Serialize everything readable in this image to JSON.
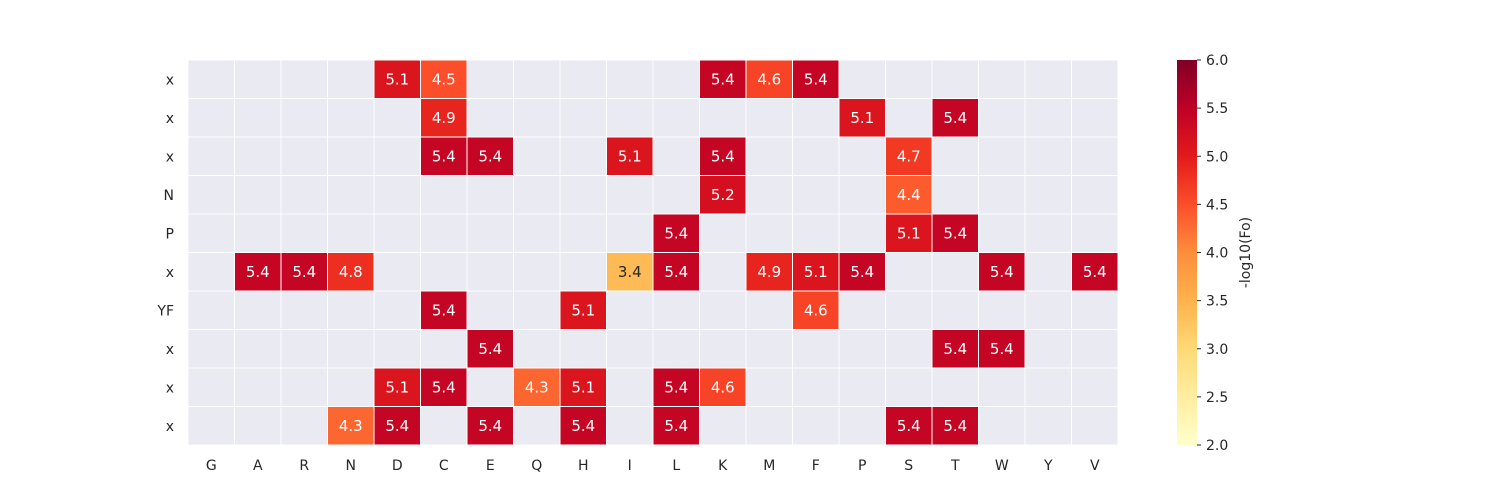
{
  "chart_data": {
    "type": "heatmap",
    "x_categories": [
      "G",
      "A",
      "R",
      "N",
      "D",
      "C",
      "E",
      "Q",
      "H",
      "I",
      "L",
      "K",
      "M",
      "F",
      "P",
      "S",
      "T",
      "W",
      "Y",
      "V"
    ],
    "y_categories": [
      "x",
      "x",
      "x",
      "N",
      "P",
      "x",
      "YF",
      "x",
      "x",
      "x"
    ],
    "cells": [
      {
        "row": 0,
        "col": "D",
        "value": 5.1
      },
      {
        "row": 0,
        "col": "C",
        "value": 4.5
      },
      {
        "row": 0,
        "col": "K",
        "value": 5.4
      },
      {
        "row": 0,
        "col": "M",
        "value": 4.6
      },
      {
        "row": 0,
        "col": "F",
        "value": 5.4
      },
      {
        "row": 1,
        "col": "C",
        "value": 4.9
      },
      {
        "row": 1,
        "col": "P",
        "value": 5.1
      },
      {
        "row": 1,
        "col": "T",
        "value": 5.4
      },
      {
        "row": 2,
        "col": "C",
        "value": 5.4
      },
      {
        "row": 2,
        "col": "E",
        "value": 5.4
      },
      {
        "row": 2,
        "col": "I",
        "value": 5.1
      },
      {
        "row": 2,
        "col": "K",
        "value": 5.4
      },
      {
        "row": 2,
        "col": "S",
        "value": 4.7
      },
      {
        "row": 3,
        "col": "K",
        "value": 5.2
      },
      {
        "row": 3,
        "col": "S",
        "value": 4.4
      },
      {
        "row": 4,
        "col": "L",
        "value": 5.4
      },
      {
        "row": 4,
        "col": "S",
        "value": 5.1
      },
      {
        "row": 4,
        "col": "T",
        "value": 5.4
      },
      {
        "row": 5,
        "col": "A",
        "value": 5.4
      },
      {
        "row": 5,
        "col": "R",
        "value": 5.4
      },
      {
        "row": 5,
        "col": "N",
        "value": 4.8
      },
      {
        "row": 5,
        "col": "I",
        "value": 3.4
      },
      {
        "row": 5,
        "col": "L",
        "value": 5.4
      },
      {
        "row": 5,
        "col": "M",
        "value": 4.9
      },
      {
        "row": 5,
        "col": "F",
        "value": 5.1
      },
      {
        "row": 5,
        "col": "P",
        "value": 5.4
      },
      {
        "row": 5,
        "col": "W",
        "value": 5.4
      },
      {
        "row": 5,
        "col": "V",
        "value": 5.4
      },
      {
        "row": 6,
        "col": "C",
        "value": 5.4
      },
      {
        "row": 6,
        "col": "H",
        "value": 5.1
      },
      {
        "row": 6,
        "col": "F",
        "value": 4.6
      },
      {
        "row": 7,
        "col": "E",
        "value": 5.4
      },
      {
        "row": 7,
        "col": "T",
        "value": 5.4
      },
      {
        "row": 7,
        "col": "W",
        "value": 5.4
      },
      {
        "row": 8,
        "col": "D",
        "value": 5.1
      },
      {
        "row": 8,
        "col": "C",
        "value": 5.4
      },
      {
        "row": 8,
        "col": "Q",
        "value": 4.3
      },
      {
        "row": 8,
        "col": "H",
        "value": 5.1
      },
      {
        "row": 8,
        "col": "L",
        "value": 5.4
      },
      {
        "row": 8,
        "col": "K",
        "value": 4.6
      },
      {
        "row": 9,
        "col": "N",
        "value": 4.3
      },
      {
        "row": 9,
        "col": "D",
        "value": 5.4
      },
      {
        "row": 9,
        "col": "E",
        "value": 5.4
      },
      {
        "row": 9,
        "col": "H",
        "value": 5.4
      },
      {
        "row": 9,
        "col": "L",
        "value": 5.4
      },
      {
        "row": 9,
        "col": "S",
        "value": 5.4
      },
      {
        "row": 9,
        "col": "T",
        "value": 5.4
      }
    ],
    "colorbar": {
      "label": "-log10(Fo)",
      "range": [
        2.0,
        6.0
      ],
      "ticks": [
        "2.0",
        "2.5",
        "3.0",
        "3.5",
        "4.0",
        "4.5",
        "5.0",
        "5.5",
        "6.0"
      ],
      "colormap": "YlOrRd"
    },
    "empty_cell_color": "#eaeaf2",
    "grid_line_color": "#ffffff",
    "title": "",
    "xlabel": "",
    "ylabel": ""
  }
}
